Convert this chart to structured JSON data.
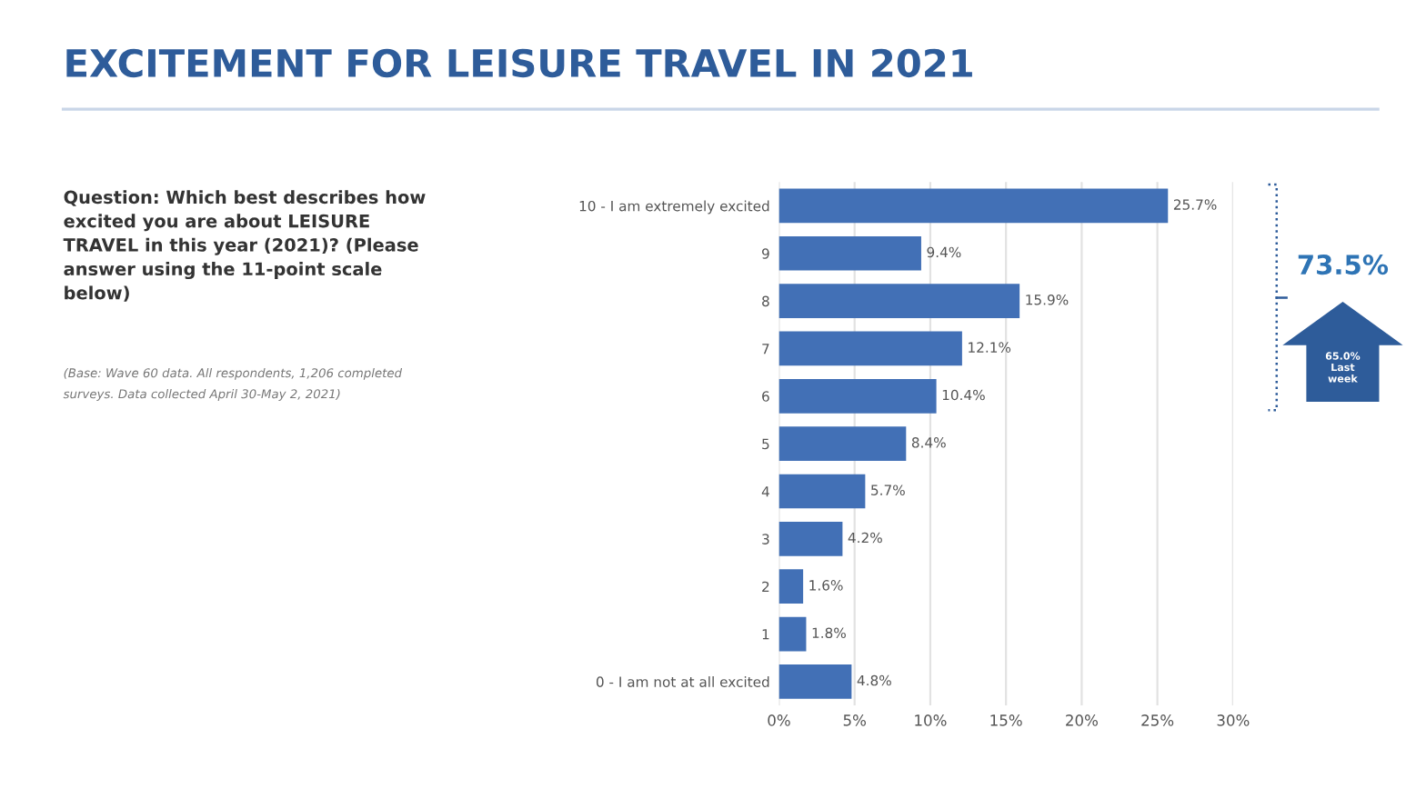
{
  "chart_data": {
    "type": "bar",
    "orientation": "horizontal",
    "title": "EXCITEMENT FOR LEISURE TRAVEL IN 2021",
    "categories": [
      "10 - I am extremely excited",
      "9",
      "8",
      "7",
      "6",
      "5",
      "4",
      "3",
      "2",
      "1",
      "0 - I am not at all excited"
    ],
    "values": [
      25.7,
      9.4,
      15.9,
      12.1,
      10.4,
      8.4,
      5.7,
      4.2,
      1.6,
      1.8,
      4.8
    ],
    "value_labels": [
      "25.7%",
      "9.4%",
      "15.9%",
      "12.1%",
      "10.4%",
      "8.4%",
      "5.7%",
      "4.2%",
      "1.6%",
      "1.8%",
      "4.8%"
    ],
    "color": "#4270b6",
    "xlim": [
      0,
      30
    ],
    "xticks": [
      {
        "value": 0,
        "label": "0%"
      },
      {
        "value": 5,
        "label": "5%"
      },
      {
        "value": 10,
        "label": "10%"
      },
      {
        "value": 15,
        "label": "15%"
      },
      {
        "value": 20,
        "label": "20%"
      },
      {
        "value": 25,
        "label": "25%"
      },
      {
        "value": 30,
        "label": "30%"
      }
    ],
    "grid": "x",
    "legend": false,
    "annotations": [
      "Question: Which best describes how\nexcited you are about LEISURE\nTRAVEL in this year (2021)? (Please\nanswer using the 11-point scale\nbelow)",
      "(Base: Wave 60 data. All respondents, 1,206 completed\nsurveys. Data collected April 30-May 2, 2021)",
      "73.5%",
      "65.0%\nLast\nweek"
    ]
  }
}
